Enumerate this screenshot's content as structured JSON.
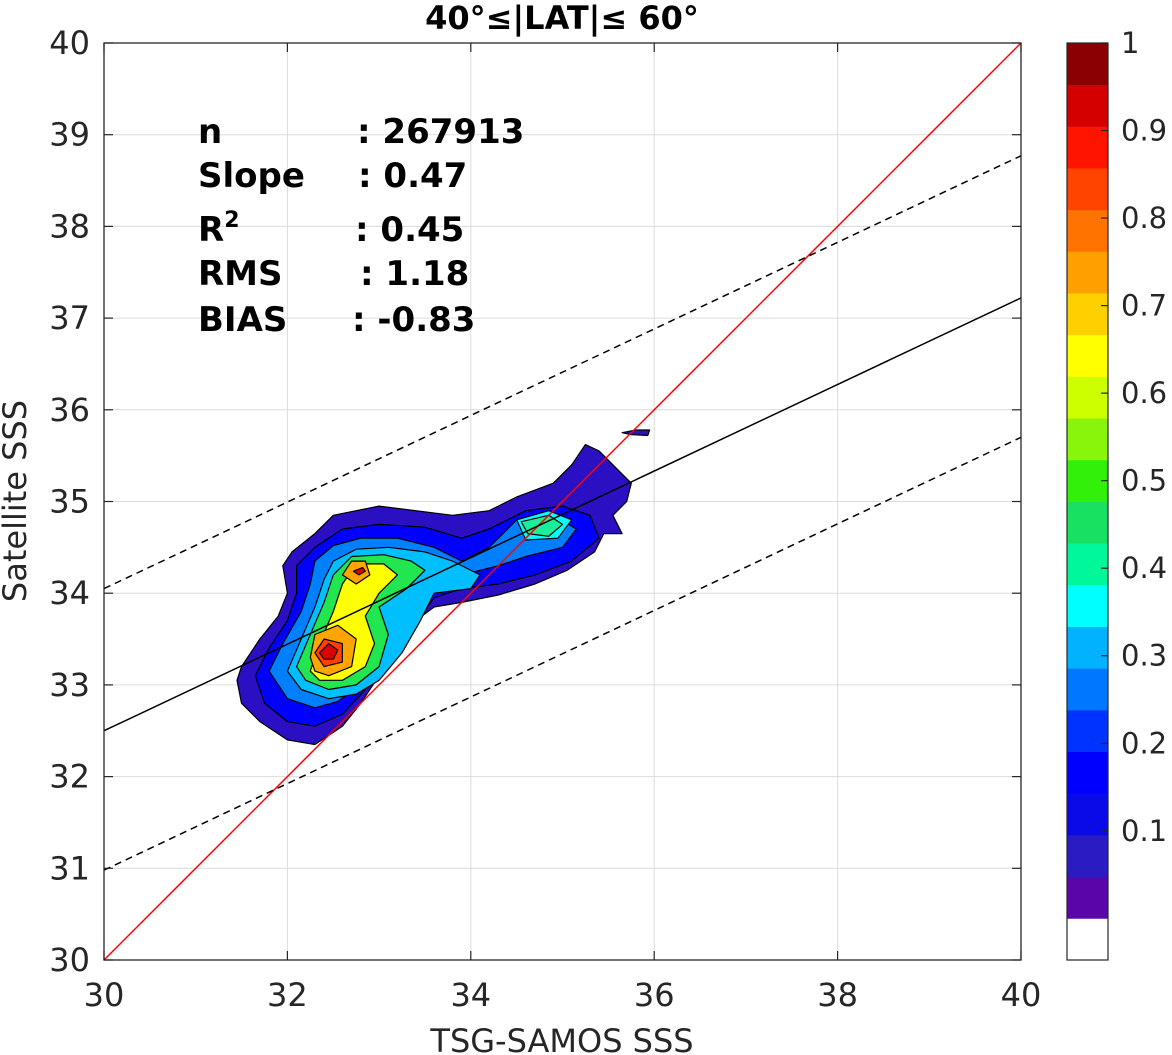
{
  "chart_data": {
    "type": "heatmap",
    "title": "40°≤|LAT|≤ 60°",
    "xlabel": "TSG-SAMOS SSS",
    "ylabel": "Satellite SSS",
    "xlim": [
      30,
      40
    ],
    "ylim": [
      30,
      40
    ],
    "x_ticks": [
      "30",
      "32",
      "34",
      "36",
      "38",
      "40"
    ],
    "y_ticks": [
      "30",
      "31",
      "32",
      "33",
      "34",
      "35",
      "36",
      "37",
      "38",
      "39",
      "40"
    ],
    "grid": true,
    "stats": [
      {
        "label": "n",
        "value": ": 267913"
      },
      {
        "label": "Slope",
        "value": ": 0.47"
      },
      {
        "label": "R",
        "sup": "2",
        "value": ": 0.45"
      },
      {
        "label": "RMS",
        "value": ": 1.18"
      },
      {
        "label": "BIAS",
        "value": ": -0.83"
      }
    ],
    "lines": [
      {
        "name": "1:1",
        "style": "solid",
        "color": "#ff0000",
        "points": [
          [
            30,
            30
          ],
          [
            40,
            40
          ]
        ]
      },
      {
        "name": "fit",
        "style": "solid",
        "color": "#000000",
        "points": [
          [
            30,
            32.5
          ],
          [
            40,
            37.22
          ]
        ]
      },
      {
        "name": "fit+",
        "style": "dashed",
        "color": "#000000",
        "points": [
          [
            30,
            34.05
          ],
          [
            40,
            38.77
          ]
        ]
      },
      {
        "name": "fit-",
        "style": "dashed",
        "color": "#000000",
        "points": [
          [
            30,
            30.98
          ],
          [
            40,
            35.7
          ]
        ]
      }
    ],
    "density_contours": [
      {
        "level": 0.05,
        "color": "#2b0fc2",
        "points": [
          [
            31.45,
            33.05
          ],
          [
            31.5,
            33.2
          ],
          [
            31.7,
            33.5
          ],
          [
            31.9,
            33.75
          ],
          [
            32.0,
            34.0
          ],
          [
            31.95,
            34.3
          ],
          [
            32.05,
            34.45
          ],
          [
            32.3,
            34.65
          ],
          [
            32.5,
            34.85
          ],
          [
            33.0,
            34.95
          ],
          [
            33.4,
            34.9
          ],
          [
            33.8,
            34.85
          ],
          [
            34.2,
            34.9
          ],
          [
            34.5,
            35.05
          ],
          [
            34.9,
            35.2
          ],
          [
            35.1,
            35.4
          ],
          [
            35.25,
            35.62
          ],
          [
            35.4,
            35.55
          ],
          [
            35.55,
            35.4
          ],
          [
            35.75,
            35.2
          ],
          [
            35.7,
            35.0
          ],
          [
            35.55,
            34.85
          ],
          [
            35.65,
            34.65
          ],
          [
            35.45,
            34.65
          ],
          [
            35.35,
            34.45
          ],
          [
            35.05,
            34.25
          ],
          [
            34.7,
            34.1
          ],
          [
            34.3,
            33.98
          ],
          [
            33.9,
            33.9
          ],
          [
            33.6,
            33.85
          ],
          [
            33.4,
            33.7
          ],
          [
            33.2,
            33.4
          ],
          [
            33.0,
            33.1
          ],
          [
            32.8,
            32.8
          ],
          [
            32.6,
            32.55
          ],
          [
            32.3,
            32.35
          ],
          [
            32.0,
            32.4
          ],
          [
            31.7,
            32.6
          ],
          [
            31.5,
            32.8
          ]
        ]
      },
      {
        "level": 0.05,
        "color": "#2b0fc2",
        "points": [
          [
            35.65,
            35.75
          ],
          [
            35.8,
            35.78
          ],
          [
            35.95,
            35.78
          ],
          [
            35.93,
            35.72
          ],
          [
            35.75,
            35.73
          ]
        ]
      },
      {
        "level": 0.1,
        "color": "#0000ff",
        "points": [
          [
            31.65,
            33.1
          ],
          [
            31.8,
            33.4
          ],
          [
            32.0,
            33.7
          ],
          [
            32.1,
            34.0
          ],
          [
            32.1,
            34.3
          ],
          [
            32.3,
            34.5
          ],
          [
            32.6,
            34.7
          ],
          [
            33.0,
            34.75
          ],
          [
            33.5,
            34.72
          ],
          [
            33.9,
            34.6
          ],
          [
            34.2,
            34.7
          ],
          [
            34.6,
            34.9
          ],
          [
            35.0,
            34.95
          ],
          [
            35.3,
            34.85
          ],
          [
            35.4,
            34.6
          ],
          [
            35.1,
            34.35
          ],
          [
            34.7,
            34.2
          ],
          [
            34.3,
            34.1
          ],
          [
            33.9,
            34.05
          ],
          [
            33.6,
            33.95
          ],
          [
            33.35,
            33.6
          ],
          [
            33.1,
            33.25
          ],
          [
            32.85,
            32.95
          ],
          [
            32.6,
            32.68
          ],
          [
            32.3,
            32.55
          ],
          [
            32.0,
            32.6
          ],
          [
            31.75,
            32.8
          ]
        ]
      },
      {
        "level": 0.2,
        "color": "#0080ff",
        "points": [
          [
            31.8,
            33.15
          ],
          [
            31.95,
            33.45
          ],
          [
            32.15,
            33.8
          ],
          [
            32.25,
            34.1
          ],
          [
            32.3,
            34.35
          ],
          [
            32.5,
            34.52
          ],
          [
            32.8,
            34.6
          ],
          [
            33.2,
            34.6
          ],
          [
            33.6,
            34.5
          ],
          [
            33.9,
            34.35
          ],
          [
            34.2,
            34.5
          ],
          [
            34.5,
            34.8
          ],
          [
            34.9,
            34.85
          ],
          [
            35.15,
            34.7
          ],
          [
            35.0,
            34.5
          ],
          [
            34.6,
            34.4
          ],
          [
            34.3,
            34.3
          ],
          [
            33.9,
            34.2
          ],
          [
            33.55,
            34.0
          ],
          [
            33.3,
            33.65
          ],
          [
            33.05,
            33.3
          ],
          [
            32.8,
            33.0
          ],
          [
            32.55,
            32.82
          ],
          [
            32.3,
            32.75
          ],
          [
            32.0,
            32.85
          ]
        ]
      },
      {
        "level": 0.3,
        "color": "#00bfff",
        "points": [
          [
            32.0,
            33.15
          ],
          [
            32.15,
            33.5
          ],
          [
            32.3,
            33.85
          ],
          [
            32.4,
            34.15
          ],
          [
            32.5,
            34.35
          ],
          [
            32.75,
            34.48
          ],
          [
            33.1,
            34.5
          ],
          [
            33.5,
            34.45
          ],
          [
            33.8,
            34.35
          ],
          [
            34.1,
            34.2
          ],
          [
            34.0,
            34.05
          ],
          [
            33.6,
            34.0
          ],
          [
            33.45,
            33.7
          ],
          [
            33.25,
            33.35
          ],
          [
            33.0,
            33.05
          ],
          [
            32.75,
            32.9
          ],
          [
            32.45,
            32.85
          ],
          [
            32.15,
            32.95
          ]
        ]
      },
      {
        "level": 0.4,
        "color": "#00ffff",
        "points": [
          [
            34.5,
            34.8
          ],
          [
            34.85,
            34.9
          ],
          [
            35.1,
            34.8
          ],
          [
            34.95,
            34.6
          ],
          [
            34.6,
            34.58
          ]
        ]
      },
      {
        "level": 0.5,
        "color": "#22e650",
        "points": [
          [
            32.1,
            33.2
          ],
          [
            32.25,
            33.55
          ],
          [
            32.4,
            33.9
          ],
          [
            32.5,
            34.2
          ],
          [
            32.7,
            34.4
          ],
          [
            33.05,
            34.42
          ],
          [
            33.35,
            34.35
          ],
          [
            33.5,
            34.25
          ],
          [
            33.3,
            34.05
          ],
          [
            33.0,
            33.85
          ],
          [
            33.1,
            33.55
          ],
          [
            33.0,
            33.2
          ],
          [
            32.75,
            33.0
          ],
          [
            32.45,
            32.95
          ],
          [
            32.2,
            33.05
          ]
        ]
      },
      {
        "level": 0.45,
        "color": "#1aee98",
        "points": [
          [
            34.55,
            34.78
          ],
          [
            34.85,
            34.85
          ],
          [
            35.0,
            34.75
          ],
          [
            34.85,
            34.62
          ],
          [
            34.62,
            34.65
          ]
        ]
      },
      {
        "level": 0.6,
        "color": "#ffff00",
        "points": [
          [
            32.25,
            33.15
          ],
          [
            32.35,
            33.45
          ],
          [
            32.5,
            33.8
          ],
          [
            32.6,
            34.1
          ],
          [
            32.75,
            34.32
          ],
          [
            33.05,
            34.32
          ],
          [
            33.2,
            34.2
          ],
          [
            33.0,
            34.0
          ],
          [
            32.85,
            33.75
          ],
          [
            32.95,
            33.45
          ],
          [
            32.85,
            33.2
          ],
          [
            32.6,
            33.05
          ],
          [
            32.35,
            33.05
          ]
        ]
      },
      {
        "level": 0.7,
        "color": "#ffa500",
        "points": [
          [
            32.25,
            33.3
          ],
          [
            32.3,
            33.55
          ],
          [
            32.55,
            33.65
          ],
          [
            32.75,
            33.5
          ],
          [
            32.7,
            33.2
          ],
          [
            32.45,
            33.1
          ],
          [
            32.3,
            33.15
          ]
        ]
      },
      {
        "level": 0.7,
        "color": "#ffa500",
        "points": [
          [
            32.6,
            34.2
          ],
          [
            32.7,
            34.35
          ],
          [
            32.85,
            34.35
          ],
          [
            32.9,
            34.2
          ],
          [
            32.75,
            34.1
          ]
        ]
      },
      {
        "level": 0.8,
        "color": "#ff4000",
        "points": [
          [
            32.3,
            33.35
          ],
          [
            32.4,
            33.5
          ],
          [
            32.6,
            33.45
          ],
          [
            32.6,
            33.25
          ],
          [
            32.4,
            33.2
          ]
        ]
      },
      {
        "level": 0.9,
        "color": "#dd0000",
        "points": [
          [
            32.35,
            33.35
          ],
          [
            32.45,
            33.45
          ],
          [
            32.55,
            33.38
          ],
          [
            32.5,
            33.28
          ],
          [
            32.4,
            33.28
          ]
        ]
      },
      {
        "level": 0.9,
        "color": "#dd0000",
        "points": [
          [
            32.72,
            34.24
          ],
          [
            32.82,
            34.28
          ],
          [
            32.85,
            34.24
          ],
          [
            32.78,
            34.2
          ]
        ]
      }
    ],
    "colorbar": {
      "ticks": [
        "0.1",
        "0.2",
        "0.3",
        "0.4",
        "0.5",
        "0.6",
        "0.7",
        "0.8",
        "0.9",
        "1"
      ],
      "tick_values": [
        0.1,
        0.2,
        0.3,
        0.4,
        0.5,
        0.6,
        0.7,
        0.8,
        0.9,
        1.0
      ],
      "range": [
        0,
        1
      ],
      "band_colors": [
        "#ffffff",
        "#5a05a8",
        "#2a1bc2",
        "#0a0ae8",
        "#0000ff",
        "#0033ff",
        "#0077ff",
        "#00b2ff",
        "#00ffff",
        "#00f79a",
        "#18e060",
        "#33f00a",
        "#88f50a",
        "#ccff00",
        "#ffff00",
        "#ffd000",
        "#ffa000",
        "#ff7400",
        "#ff4400",
        "#ff1400",
        "#d40000",
        "#8b0000"
      ]
    }
  }
}
